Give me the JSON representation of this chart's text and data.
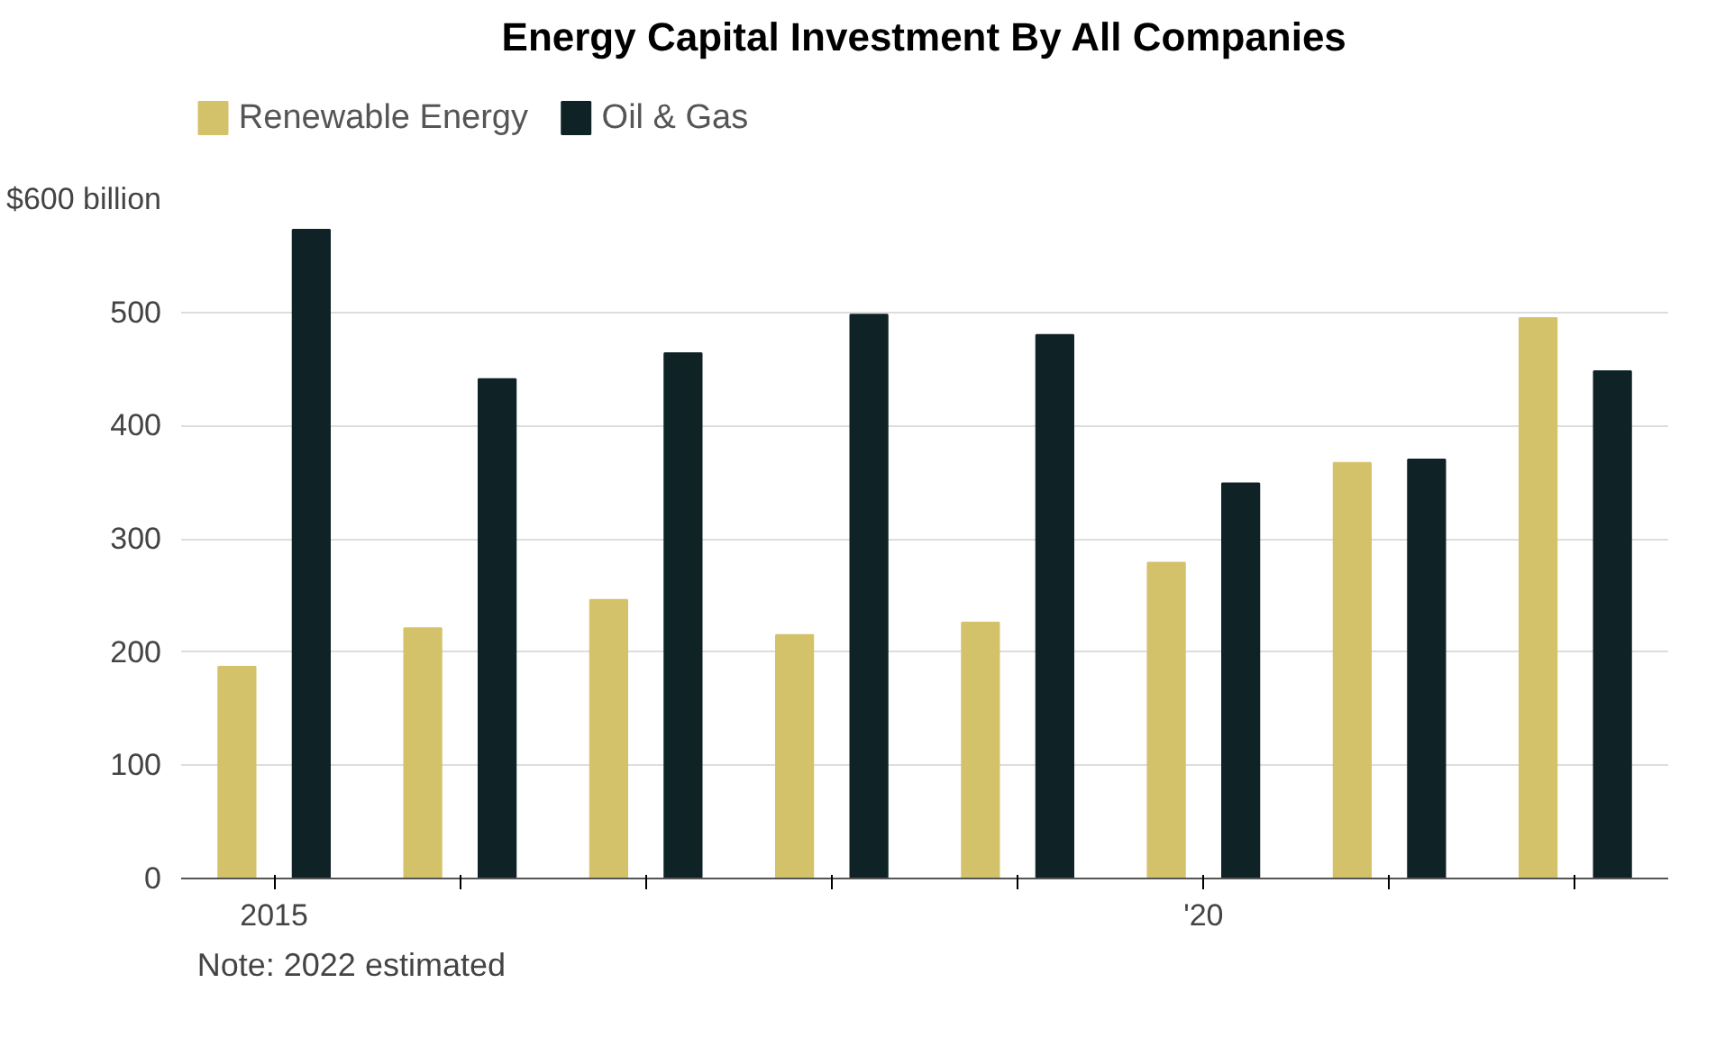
{
  "chart_data": {
    "type": "bar",
    "title": "Energy Capital Investment By All Companies",
    "categories": [
      "2015",
      null,
      null,
      null,
      null,
      "'20",
      null,
      null
    ],
    "series": [
      {
        "name": "Renewable Energy",
        "color": "#d4c26a",
        "values": [
          187,
          221,
          246,
          215,
          226,
          279,
          367,
          495
        ]
      },
      {
        "name": "Oil & Gas",
        "color": "#0f2326",
        "values": [
          573,
          441,
          464,
          498,
          480,
          349,
          370,
          448
        ]
      }
    ],
    "ylim": [
      0,
      600
    ],
    "yticks": [
      0,
      100,
      200,
      300,
      400,
      500,
      {
        "value": 600,
        "label": "$600 billion"
      }
    ],
    "grid": "y",
    "legend": "top left",
    "annotations": [
      "Note: 2022 estimated"
    ]
  }
}
